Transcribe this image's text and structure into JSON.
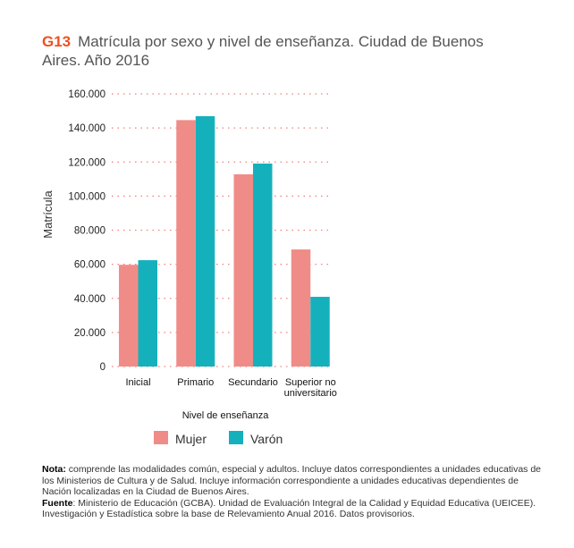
{
  "header": {
    "code": "G13",
    "title": "Matrícula por sexo y nivel de enseñanza. Ciudad de Buenos Aires. Año 2016"
  },
  "chart_data": {
    "type": "bar",
    "title": "Matrícula por sexo y nivel de enseñanza. Ciudad de Buenos Aires. Año 2016",
    "xlabel": "Nivel de enseñanza",
    "ylabel": "Matrícula",
    "categories": [
      "Inicial",
      "Primario",
      "Secundario",
      "Superior no universitario"
    ],
    "series": [
      {
        "name": "Mujer",
        "color": "#f08c88",
        "values": [
          59700,
          144600,
          112800,
          68700
        ]
      },
      {
        "name": "Varón",
        "color": "#14b1bc",
        "values": [
          62400,
          146900,
          119100,
          40900
        ]
      }
    ],
    "ylim": [
      0,
      160000
    ],
    "yticks": [
      0,
      20000,
      40000,
      60000,
      80000,
      100000,
      120000,
      140000,
      160000
    ],
    "ytick_labels": [
      "0",
      "20.000",
      "40.000",
      "60.000",
      "80.000",
      "100.000",
      "120.000",
      "140.000",
      "160.000"
    ],
    "grid": true,
    "legend": "bottom"
  },
  "notes": {
    "nota_label": "Nota:",
    "nota_text": " comprende las modalidades común, especial y adultos. Incluye datos correspondientes a unidades educativas de los Ministerios de Cultura y de Salud. Incluye información correspondiente a unidades educativas dependientes de Nación localizadas en la Ciudad de Buenos Aires.",
    "fuente_label": "Fuente",
    "fuente_text": ": Ministerio de Educación (GCBA). Unidad de Evaluación Integral de la Calidad y Equidad Educativa (UEICEE). Investigación y Estadística sobre la base de Relevamiento Anual 2016. Datos provisorios."
  }
}
